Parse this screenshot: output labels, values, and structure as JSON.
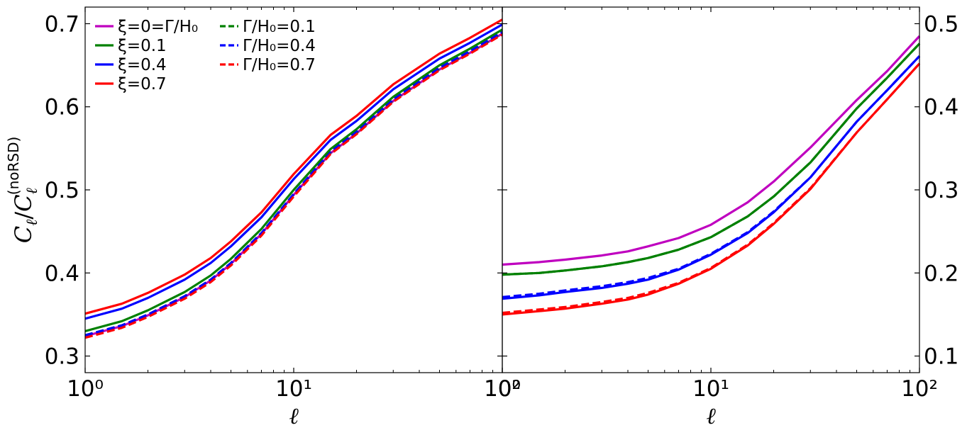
{
  "chart_data": [
    {
      "type": "line",
      "panel": "left",
      "xscale": "log",
      "xlim": [
        1,
        100
      ],
      "ylim": [
        0.28,
        0.72
      ],
      "xlabel": "ℓ",
      "ylabel": "C_ℓ/C_ℓ^(noRSD)",
      "x_tick_labels": [
        "10⁰",
        "10¹",
        "10²"
      ],
      "y_tick_labels": [
        "0.3",
        "0.4",
        "0.5",
        "0.6",
        "0.7"
      ],
      "y_ticks": [
        0.3,
        0.4,
        0.5,
        0.6,
        0.7
      ],
      "y_axis_side": "left",
      "legend": {
        "placement": "top-left",
        "entries": [
          {
            "label": "ξ=0=Γ/H₀",
            "color": "#bf00bf",
            "style": "solid"
          },
          {
            "label": "ξ=0.1",
            "color": "#008000",
            "style": "solid"
          },
          {
            "label": "ξ=0.4",
            "color": "#0000ff",
            "style": "solid"
          },
          {
            "label": "ξ=0.7",
            "color": "#ff0000",
            "style": "solid"
          },
          {
            "label": "Γ/H₀=0.1",
            "color": "#008000",
            "style": "dashed"
          },
          {
            "label": "Γ/H₀=0.4",
            "color": "#0000ff",
            "style": "dashed"
          },
          {
            "label": "Γ/H₀=0.7",
            "color": "#ff0000",
            "style": "dashed"
          }
        ]
      },
      "x": [
        1,
        1.5,
        2,
        3,
        4,
        5,
        7,
        10,
        15,
        20,
        30,
        50,
        70,
        100
      ],
      "series": [
        {
          "name": "ξ=0=Γ/H₀",
          "color": "#bf00bf",
          "style": "solid",
          "values": [
            0.324,
            0.336,
            0.349,
            0.371,
            0.391,
            0.411,
            0.447,
            0.494,
            0.544,
            0.568,
            0.607,
            0.645,
            0.665,
            0.688
          ]
        },
        {
          "name": "Γ/H₀=0.1",
          "color": "#008000",
          "style": "dashed",
          "values": [
            0.325,
            0.337,
            0.35,
            0.372,
            0.392,
            0.412,
            0.448,
            0.495,
            0.545,
            0.569,
            0.608,
            0.646,
            0.666,
            0.689
          ]
        },
        {
          "name": "Γ/H₀=0.4",
          "color": "#0000ff",
          "style": "dashed",
          "values": [
            0.325,
            0.337,
            0.35,
            0.372,
            0.392,
            0.412,
            0.448,
            0.495,
            0.546,
            0.57,
            0.609,
            0.647,
            0.667,
            0.69
          ]
        },
        {
          "name": "Γ/H₀=0.7",
          "color": "#ff0000",
          "style": "dashed",
          "values": [
            0.322,
            0.334,
            0.347,
            0.369,
            0.389,
            0.409,
            0.445,
            0.492,
            0.543,
            0.567,
            0.606,
            0.644,
            0.664,
            0.687
          ]
        },
        {
          "name": "ξ=0.1",
          "color": "#008000",
          "style": "solid",
          "values": [
            0.33,
            0.342,
            0.355,
            0.377,
            0.397,
            0.417,
            0.453,
            0.5,
            0.549,
            0.573,
            0.612,
            0.65,
            0.67,
            0.693
          ]
        },
        {
          "name": "ξ=0.4",
          "color": "#0000ff",
          "style": "solid",
          "values": [
            0.345,
            0.357,
            0.37,
            0.392,
            0.412,
            0.432,
            0.467,
            0.513,
            0.56,
            0.583,
            0.621,
            0.658,
            0.677,
            0.699
          ]
        },
        {
          "name": "ξ=0.7",
          "color": "#ff0000",
          "style": "solid",
          "values": [
            0.351,
            0.363,
            0.376,
            0.398,
            0.418,
            0.438,
            0.473,
            0.519,
            0.566,
            0.589,
            0.627,
            0.664,
            0.683,
            0.705
          ]
        }
      ]
    },
    {
      "type": "line",
      "panel": "right",
      "xscale": "log",
      "xlim": [
        1,
        100
      ],
      "ylim": [
        0.08,
        0.52
      ],
      "xlabel": "ℓ",
      "x_tick_labels": [
        "10⁰",
        "10¹",
        "10²"
      ],
      "y_tick_labels": [
        "0.1",
        "0.2",
        "0.3",
        "0.4",
        "0.5"
      ],
      "y_ticks": [
        0.1,
        0.2,
        0.3,
        0.4,
        0.5
      ],
      "y_axis_side": "right",
      "x": [
        1,
        1.5,
        2,
        3,
        4,
        5,
        7,
        10,
        15,
        20,
        30,
        50,
        70,
        100
      ],
      "series": [
        {
          "name": "ξ=0=Γ/H₀",
          "color": "#bf00bf",
          "style": "solid",
          "values": [
            0.21,
            0.213,
            0.216,
            0.221,
            0.226,
            0.232,
            0.242,
            0.258,
            0.285,
            0.31,
            0.351,
            0.408,
            0.443,
            0.485
          ]
        },
        {
          "name": "ξ=0.1",
          "color": "#008000",
          "style": "solid",
          "values": [
            0.198,
            0.2,
            0.203,
            0.208,
            0.213,
            0.218,
            0.228,
            0.243,
            0.268,
            0.292,
            0.333,
            0.398,
            0.435,
            0.476
          ]
        },
        {
          "name": "Γ/H₀=0.1",
          "color": "#008000",
          "style": "dashed",
          "values": [
            0.198,
            0.2,
            0.203,
            0.208,
            0.213,
            0.218,
            0.228,
            0.243,
            0.268,
            0.292,
            0.333,
            0.398,
            0.435,
            0.476
          ]
        },
        {
          "name": "ξ=0.4",
          "color": "#0000ff",
          "style": "solid",
          "values": [
            0.169,
            0.173,
            0.177,
            0.182,
            0.187,
            0.192,
            0.204,
            0.222,
            0.248,
            0.273,
            0.315,
            0.382,
            0.42,
            0.461
          ]
        },
        {
          "name": "Γ/H₀=0.4",
          "color": "#0000ff",
          "style": "dashed",
          "values": [
            0.171,
            0.175,
            0.179,
            0.184,
            0.189,
            0.194,
            0.205,
            0.223,
            0.249,
            0.274,
            0.315,
            0.382,
            0.42,
            0.461
          ]
        },
        {
          "name": "ξ=0.7",
          "color": "#ff0000",
          "style": "solid",
          "values": [
            0.15,
            0.154,
            0.157,
            0.163,
            0.168,
            0.174,
            0.187,
            0.205,
            0.233,
            0.259,
            0.301,
            0.369,
            0.409,
            0.452
          ]
        },
        {
          "name": "Γ/H₀=0.7",
          "color": "#ff0000",
          "style": "dashed",
          "values": [
            0.152,
            0.156,
            0.159,
            0.165,
            0.17,
            0.176,
            0.188,
            0.206,
            0.234,
            0.26,
            0.302,
            0.369,
            0.409,
            0.452
          ]
        }
      ]
    }
  ]
}
